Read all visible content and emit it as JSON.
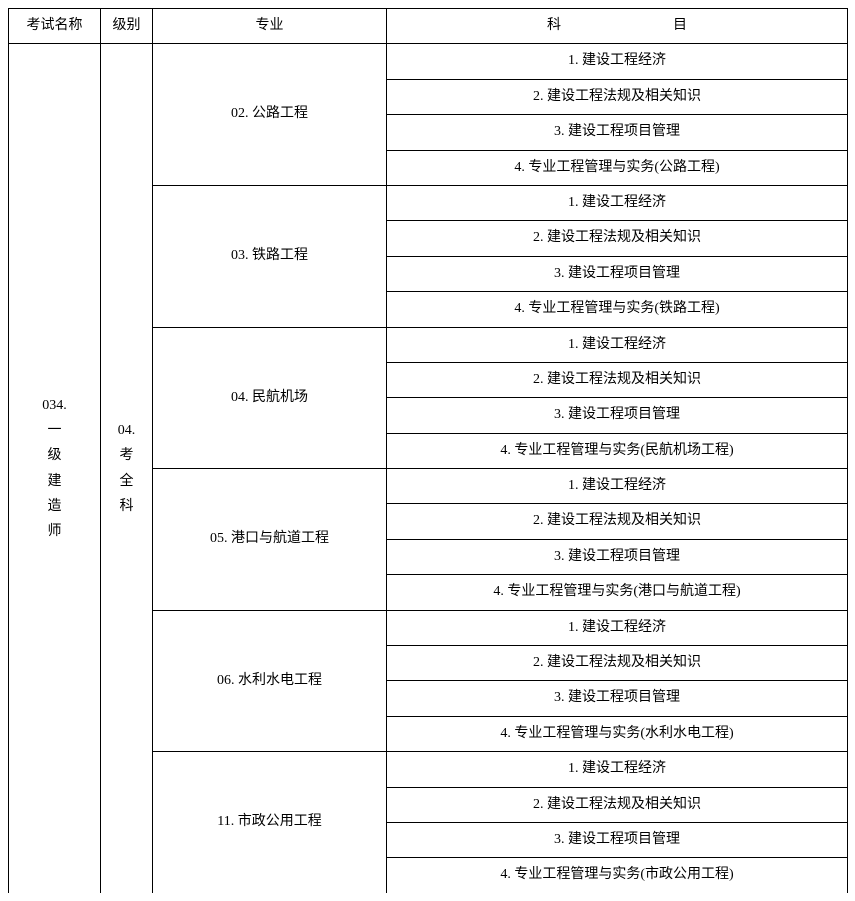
{
  "headers": {
    "exam_name": "考试名称",
    "level": "级别",
    "specialty": "专业",
    "subject": "科　　　　　　　　目"
  },
  "exam_name": "034.\n一\n级\n建\n造\n师",
  "level": "04.\n考\n全\n科",
  "columns": {
    "exam_name_width": 92,
    "level_width": 52,
    "specialty_width": 234,
    "subject_width": 461
  },
  "specialties": [
    {
      "name": "02. 公路工程",
      "subjects": [
        "1. 建设工程经济",
        "2. 建设工程法规及相关知识",
        "3. 建设工程项目管理",
        "4. 专业工程管理与实务(公路工程)"
      ]
    },
    {
      "name": "03. 铁路工程",
      "subjects": [
        "1. 建设工程经济",
        "2. 建设工程法规及相关知识",
        "3. 建设工程项目管理",
        "4. 专业工程管理与实务(铁路工程)"
      ]
    },
    {
      "name": "04. 民航机场",
      "subjects": [
        "1. 建设工程经济",
        "2. 建设工程法规及相关知识",
        "3. 建设工程项目管理",
        "4. 专业工程管理与实务(民航机场工程)"
      ]
    },
    {
      "name": "05. 港口与航道工程",
      "subjects": [
        "1. 建设工程经济",
        "2. 建设工程法规及相关知识",
        "3. 建设工程项目管理",
        "4. 专业工程管理与实务(港口与航道工程)"
      ]
    },
    {
      "name": "06. 水利水电工程",
      "subjects": [
        "1. 建设工程经济",
        "2. 建设工程法规及相关知识",
        "3. 建设工程项目管理",
        "4. 专业工程管理与实务(水利水电工程)"
      ]
    },
    {
      "name": "11. 市政公用工程",
      "subjects": [
        "1. 建设工程经济",
        "2. 建设工程法规及相关知识",
        "3. 建设工程项目管理",
        "4. 专业工程管理与实务(市政公用工程)"
      ]
    }
  ]
}
